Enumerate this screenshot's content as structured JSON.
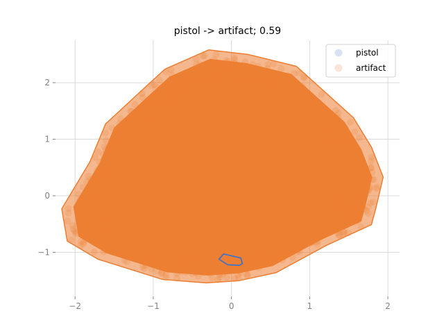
{
  "chart_data": {
    "type": "scatter",
    "title": "pistol -> artifact; 0.59",
    "xlabel": "",
    "ylabel": "",
    "xlim": [
      -2.25,
      2.15
    ],
    "ylim": [
      -1.78,
      2.75
    ],
    "x_ticks": [
      -2,
      -1,
      0,
      1,
      2
    ],
    "y_ticks": [
      -1,
      0,
      1,
      2
    ],
    "x_tick_labels": [
      "−2",
      "−1",
      "0",
      "1",
      "2"
    ],
    "y_tick_labels": [
      "−1",
      "0",
      "1",
      "2"
    ],
    "grid": true,
    "legend_position": "top-right",
    "series": [
      {
        "name": "pistol",
        "color": "#4472c4",
        "marker_alpha": 0.2,
        "hull": [
          [
            -0.1,
            -1.03
          ],
          [
            0.12,
            -1.1
          ],
          [
            0.14,
            -1.2
          ],
          [
            0.1,
            -1.23
          ],
          [
            -0.05,
            -1.22
          ],
          [
            -0.16,
            -1.12
          ]
        ]
      },
      {
        "name": "artifact",
        "color": "#ed7d31",
        "marker_alpha": 0.2,
        "hull": [
          [
            -0.29,
            2.58
          ],
          [
            0.21,
            2.5
          ],
          [
            0.83,
            2.29
          ],
          [
            1.56,
            1.38
          ],
          [
            1.79,
            0.86
          ],
          [
            1.94,
            0.33
          ],
          [
            1.85,
            -0.2
          ],
          [
            1.79,
            -0.51
          ],
          [
            1.21,
            -0.88
          ],
          [
            0.57,
            -1.36
          ],
          [
            0.1,
            -1.5
          ],
          [
            -0.32,
            -1.54
          ],
          [
            -0.88,
            -1.48
          ],
          [
            -1.71,
            -1.12
          ],
          [
            -2.1,
            -0.8
          ],
          [
            -2.17,
            -0.23
          ],
          [
            -1.81,
            0.6
          ],
          [
            -1.61,
            1.27
          ],
          [
            -1.15,
            1.86
          ],
          [
            -0.85,
            2.24
          ]
        ]
      }
    ]
  }
}
